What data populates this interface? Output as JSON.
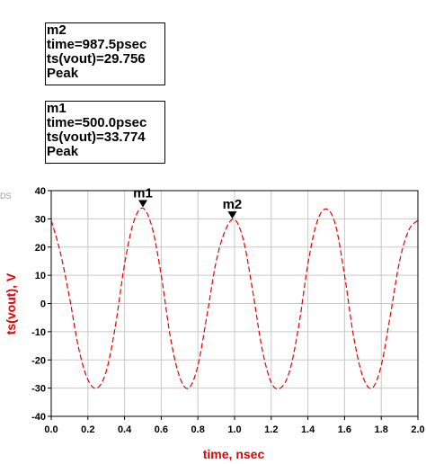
{
  "markers": {
    "m2": {
      "name": "m2",
      "time_line": "time=987.5psec",
      "value_line": "ts(vout)=29.756",
      "kind": "Peak"
    },
    "m1": {
      "name": "m1",
      "time_line": "time=500.0psec",
      "value_line": "ts(vout)=33.774",
      "kind": "Peak"
    }
  },
  "corner_text": "DS",
  "chart_data": {
    "type": "line",
    "xlabel": "time, nsec",
    "ylabel": "ts(vout), V",
    "xlim": [
      0.0,
      2.0
    ],
    "ylim": [
      -40,
      40
    ],
    "x_ticks": [
      "0.0",
      "0.2",
      "0.4",
      "0.6",
      "0.8",
      "1.0",
      "1.2",
      "1.4",
      "1.6",
      "1.8",
      "2.0"
    ],
    "y_ticks": [
      "40",
      "30",
      "20",
      "10",
      "0",
      "-10",
      "-20",
      "-30",
      "-40"
    ],
    "grid": true,
    "series": [
      {
        "line_style": "dashed",
        "color": "#e60000",
        "x": [
          0.0,
          0.05,
          0.1,
          0.15,
          0.2,
          0.25,
          0.3,
          0.35,
          0.4,
          0.45,
          0.5,
          0.55,
          0.6,
          0.65,
          0.7,
          0.75,
          0.8,
          0.85,
          0.9,
          0.95,
          1.0,
          1.05,
          1.1,
          1.15,
          1.2,
          1.25,
          1.3,
          1.35,
          1.4,
          1.45,
          1.5,
          1.55,
          1.6,
          1.65,
          1.7,
          1.75,
          1.8,
          1.85,
          1.9,
          1.95,
          2.0
        ],
        "y": [
          29.5,
          18,
          2,
          -16,
          -27,
          -30,
          -24,
          -8,
          14,
          29,
          33.8,
          27,
          10,
          -12,
          -26,
          -30,
          -22,
          -4,
          15,
          26,
          29.8,
          22,
          4,
          -16,
          -28,
          -30,
          -24,
          -8,
          14,
          29,
          33.5,
          28,
          10,
          -12,
          -26,
          -30,
          -22,
          -4,
          15,
          26,
          29.5
        ]
      }
    ],
    "markers": [
      {
        "label": "m1",
        "x": 0.5,
        "y": 33.774
      },
      {
        "label": "m2",
        "x": 0.9875,
        "y": 29.756
      }
    ]
  }
}
